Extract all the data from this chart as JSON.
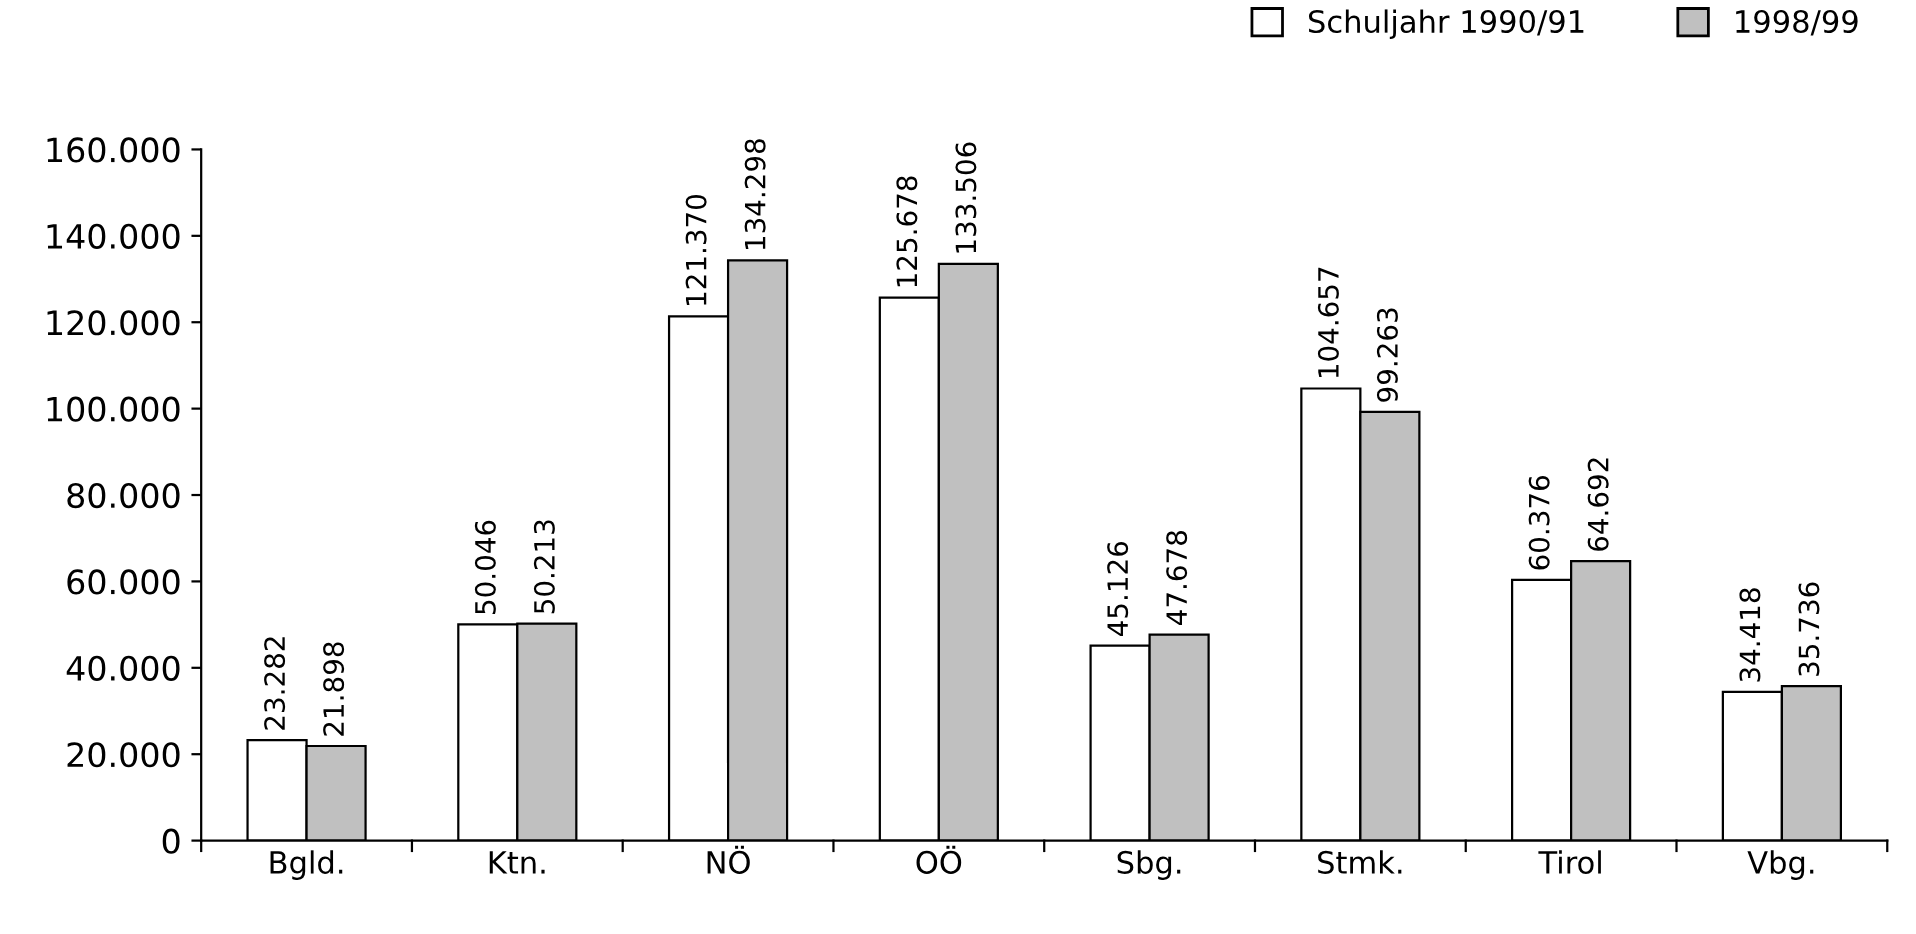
{
  "chart_data": {
    "type": "bar",
    "categories": [
      "Bgld.",
      "Ktn.",
      "NÖ",
      "OÖ",
      "Sbg.",
      "Stmk.",
      "Tirol",
      "Vbg."
    ],
    "series": [
      {
        "name": "Schuljahr 1990/91",
        "color": "#ffffff",
        "values": [
          23282,
          50046,
          121370,
          125678,
          45126,
          104657,
          60376,
          34418
        ],
        "value_labels": [
          "23.282",
          "50.046",
          "121.370",
          "125.678",
          "45.126",
          "104.657",
          "60.376",
          "34.418"
        ]
      },
      {
        "name": "1998/99",
        "color": "#c0c0c0",
        "values": [
          21898,
          50213,
          134298,
          133506,
          47678,
          99263,
          64692,
          35736
        ],
        "value_labels": [
          "21.898",
          "50.213",
          "134.298",
          "133.506",
          "47.678",
          "99.263",
          "64.692",
          "35.736"
        ]
      }
    ],
    "ylim": [
      0,
      160000
    ],
    "yticks": [
      {
        "value": 0,
        "label": "0"
      },
      {
        "value": 20000,
        "label": "20.000"
      },
      {
        "value": 40000,
        "label": "40.000"
      },
      {
        "value": 60000,
        "label": "60.000"
      },
      {
        "value": 80000,
        "label": "80.000"
      },
      {
        "value": 100000,
        "label": "100.000"
      },
      {
        "value": 120000,
        "label": "120.000"
      },
      {
        "value": 140000,
        "label": "140.000"
      },
      {
        "value": 160000,
        "label": "160.000"
      }
    ],
    "grid": false,
    "legend": "top right"
  }
}
